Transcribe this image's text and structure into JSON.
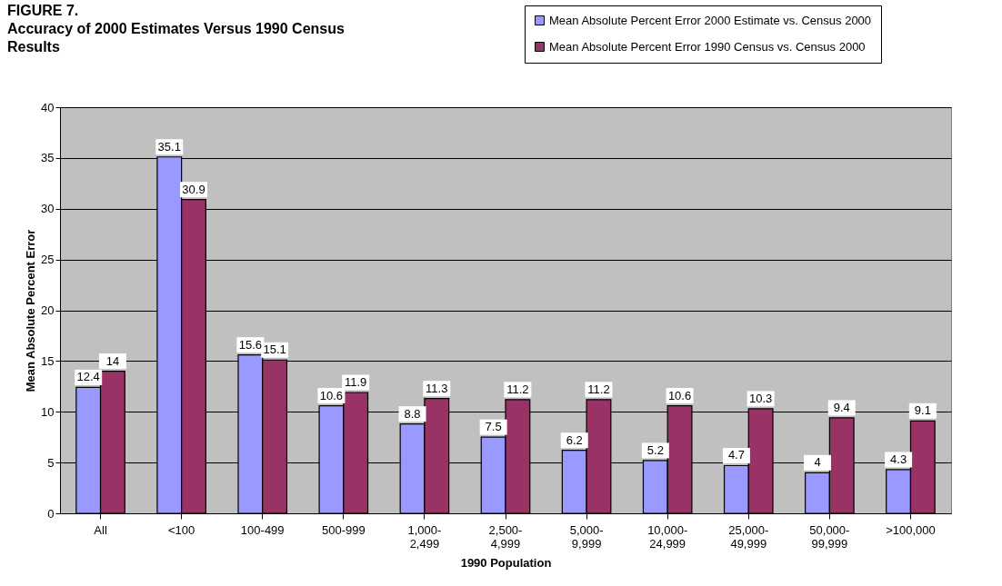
{
  "chart_data": {
    "type": "bar",
    "title": "FIGURE 7.",
    "subtitle": "Accuracy of 2000 Estimates Versus 1990 Census Results",
    "xlabel": "1990 Population",
    "ylabel": "Mean Absolute Percent Error",
    "categories": [
      "All",
      "<100",
      "100-499",
      "500-999",
      "1,000-2,499",
      "2,500-4,999",
      "5,000-9,999",
      "10,000-24,999",
      "25,000-49,999",
      "50,000-99,999",
      ">100,000"
    ],
    "series": [
      {
        "name": "Mean Absolute Percent Error 2000 Estimate vs. Census 2000",
        "color": "#9999ff",
        "values": [
          12.4,
          35.1,
          15.6,
          10.6,
          8.8,
          7.5,
          6.2,
          5.2,
          4.7,
          4,
          4.3
        ]
      },
      {
        "name": "Mean Absolute Percent Error 1990 Census vs. Census 2000",
        "color": "#993366",
        "values": [
          14,
          30.9,
          15.1,
          11.9,
          11.3,
          11.2,
          11.2,
          10.6,
          10.3,
          9.4,
          9.1
        ]
      }
    ],
    "ylim": [
      0,
      40
    ],
    "yticks": [
      0,
      5,
      10,
      15,
      20,
      25,
      30,
      35,
      40
    ],
    "grid": "y",
    "legend": "top right",
    "data_labels": true
  }
}
